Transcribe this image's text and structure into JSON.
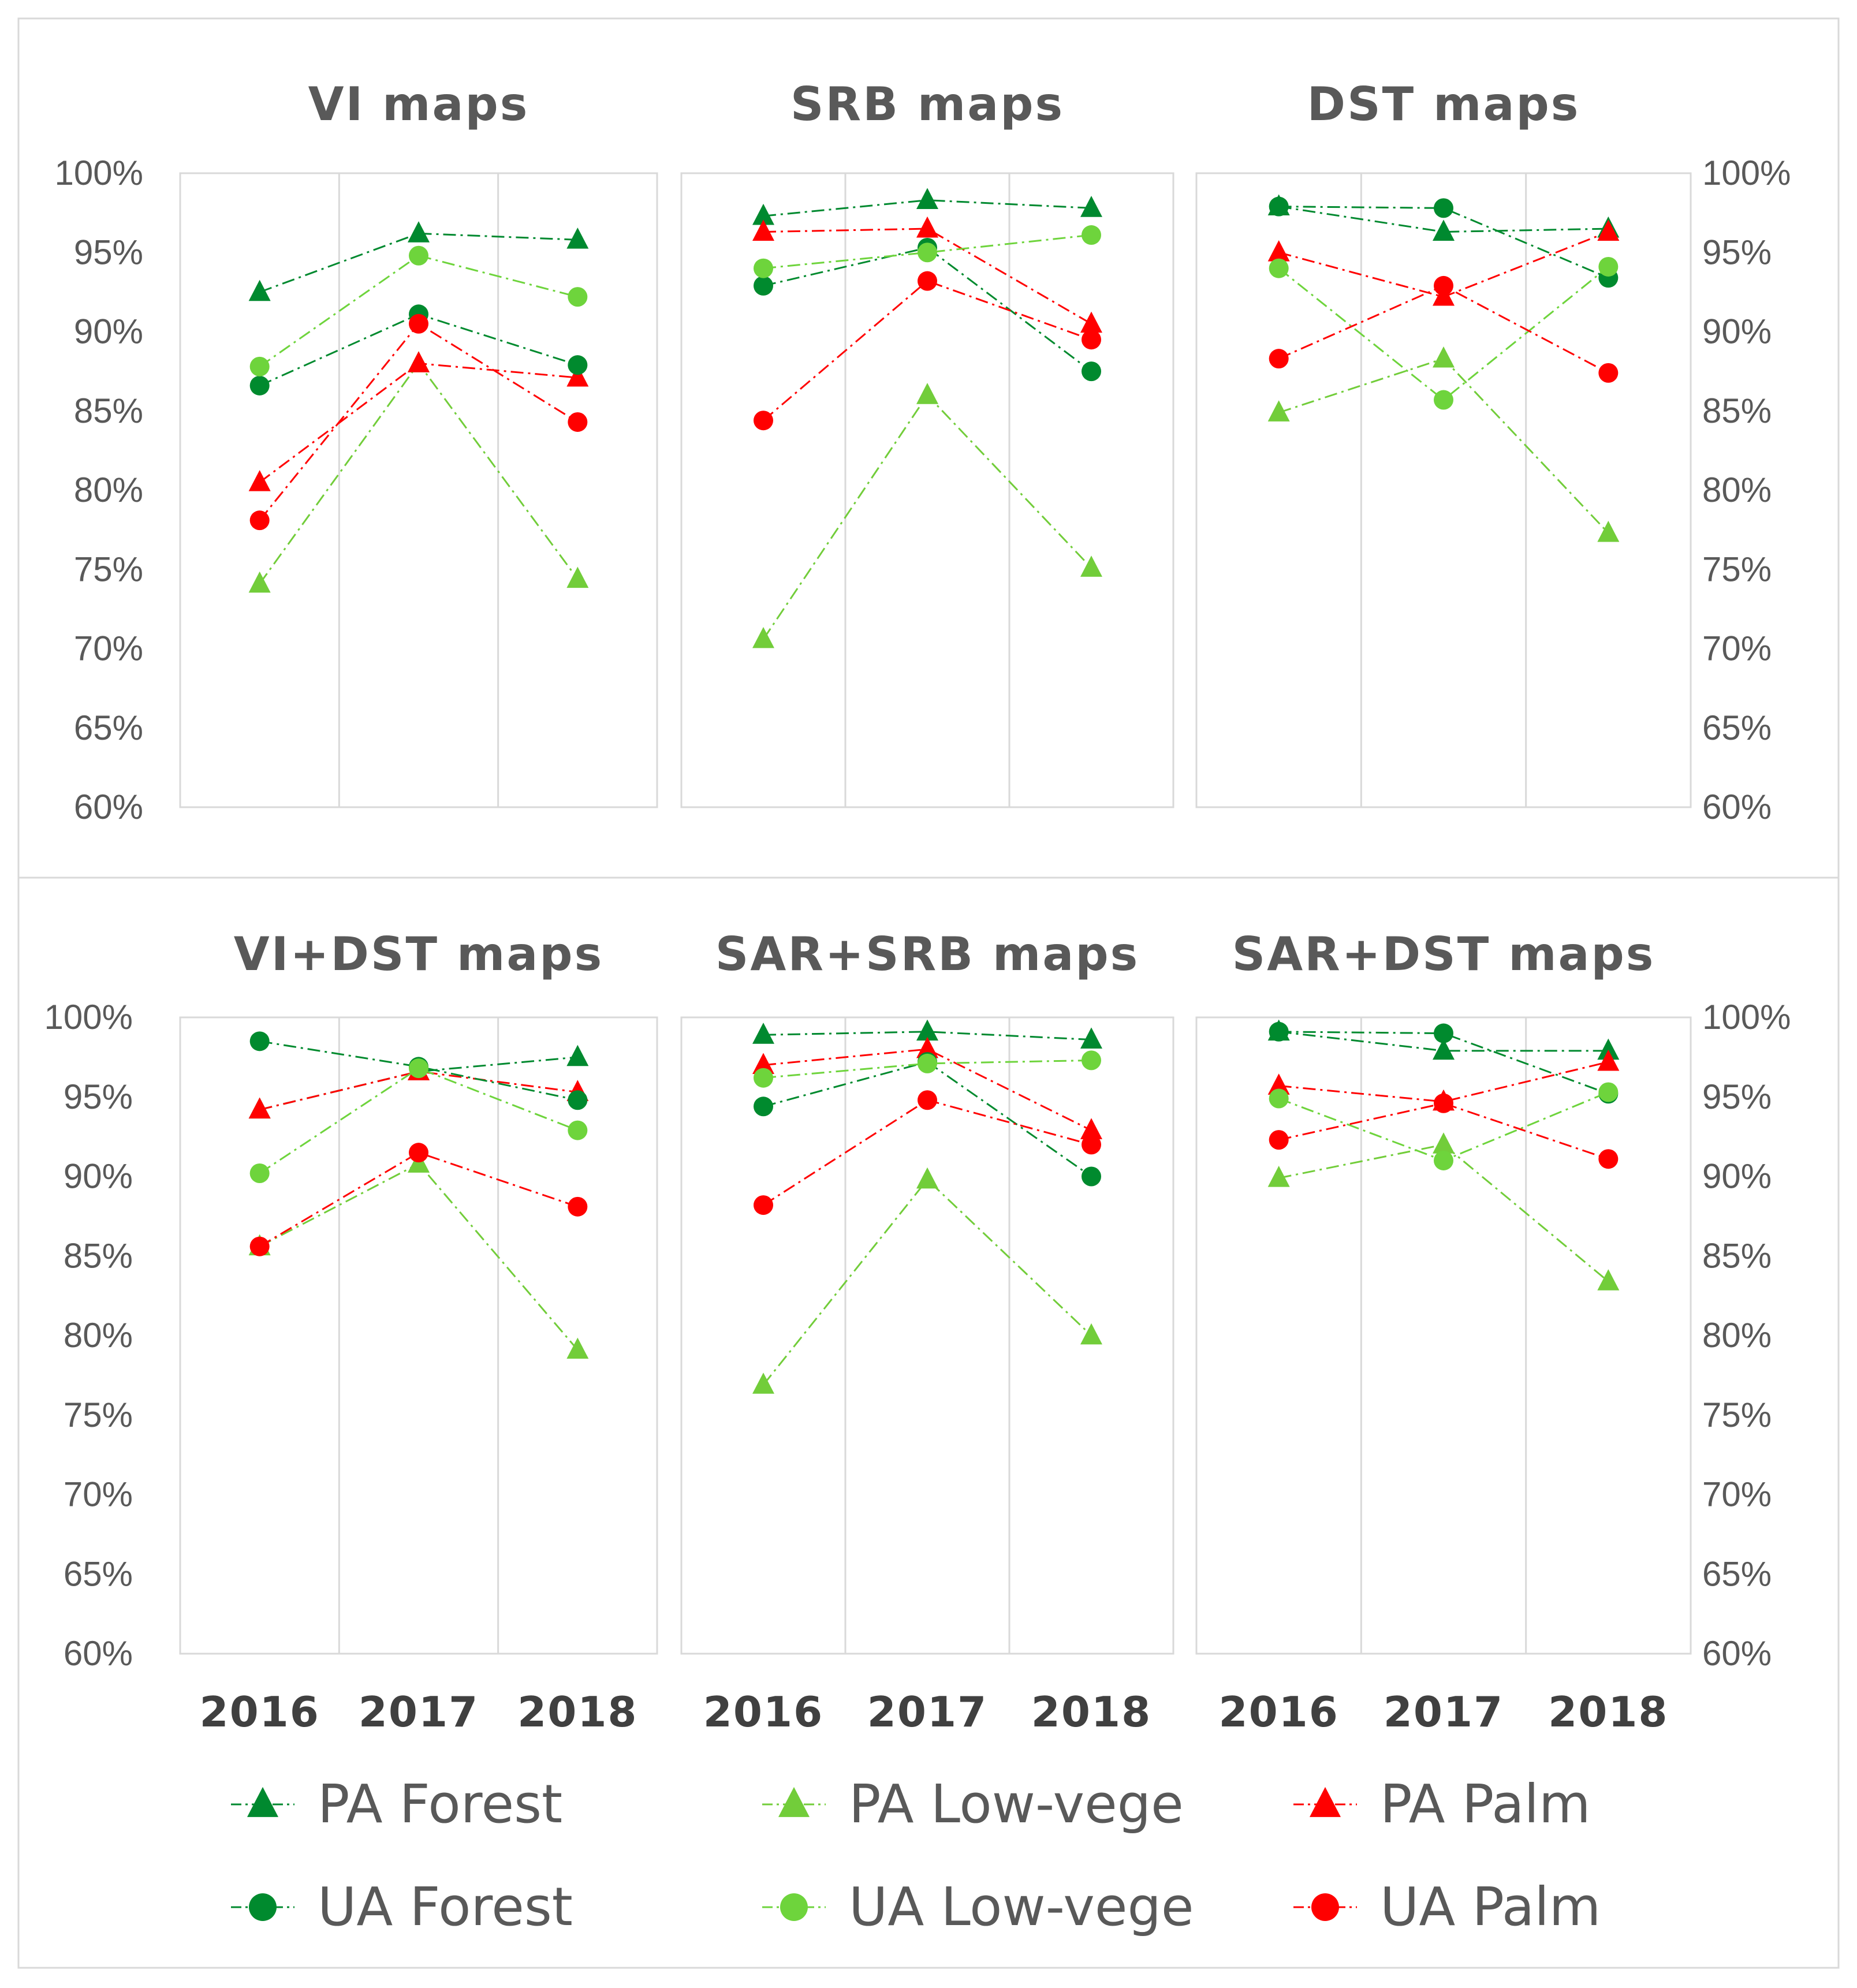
{
  "colors": {
    "pa_forest": "#00892f",
    "pa_lowvege": "#72cd3a",
    "pa_palm": "#ff0000",
    "ua_forest": "#008a2e",
    "ua_lowvege": "#6ed43c",
    "ua_palm": "#ff0000",
    "text": "#595959",
    "grid": "#d9d9d9"
  },
  "chart_data": [
    {
      "type": "line",
      "title": "VI maps",
      "categories": [
        "2016",
        "2017",
        "2018"
      ],
      "ylim": [
        0.6,
        1.0
      ],
      "series": [
        {
          "name": "PA Forest",
          "values": [
            0.925,
            0.962,
            0.958
          ]
        },
        {
          "name": "PA Low-vege",
          "values": [
            0.741,
            0.88,
            0.744
          ]
        },
        {
          "name": "PA Palm",
          "values": [
            0.805,
            0.88,
            0.871
          ]
        },
        {
          "name": "UA Forest",
          "values": [
            0.866,
            0.911,
            0.879
          ]
        },
        {
          "name": "UA Low-vege",
          "values": [
            0.878,
            0.948,
            0.922
          ]
        },
        {
          "name": "UA Palm",
          "values": [
            0.781,
            0.905,
            0.843
          ]
        }
      ]
    },
    {
      "type": "line",
      "title": "SRB maps",
      "categories": [
        "2016",
        "2017",
        "2018"
      ],
      "ylim": [
        0.6,
        1.0
      ],
      "series": [
        {
          "name": "PA Forest",
          "values": [
            0.973,
            0.983,
            0.978
          ]
        },
        {
          "name": "PA Low-vege",
          "values": [
            0.706,
            0.86,
            0.751
          ]
        },
        {
          "name": "PA Palm",
          "values": [
            0.963,
            0.965,
            0.905
          ]
        },
        {
          "name": "UA Forest",
          "values": [
            0.929,
            0.953,
            0.875
          ]
        },
        {
          "name": "UA Low-vege",
          "values": [
            0.94,
            0.95,
            0.961
          ]
        },
        {
          "name": "UA Palm",
          "values": [
            0.844,
            0.932,
            0.895
          ]
        }
      ]
    },
    {
      "type": "line",
      "title": "DST maps",
      "categories": [
        "2016",
        "2017",
        "2018"
      ],
      "ylim": [
        0.6,
        1.0
      ],
      "series": [
        {
          "name": "PA Forest",
          "values": [
            0.979,
            0.963,
            0.965
          ]
        },
        {
          "name": "PA Low-vege",
          "values": [
            0.849,
            0.883,
            0.773
          ]
        },
        {
          "name": "PA Palm",
          "values": [
            0.95,
            0.922,
            0.963
          ]
        },
        {
          "name": "UA Forest",
          "values": [
            0.979,
            0.978,
            0.934
          ]
        },
        {
          "name": "UA Low-vege",
          "values": [
            0.94,
            0.857,
            0.941
          ]
        },
        {
          "name": "UA Palm",
          "values": [
            0.883,
            0.929,
            0.874
          ]
        }
      ]
    },
    {
      "type": "line",
      "title": "VI+DST maps",
      "categories": [
        "2016",
        "2017",
        "2018"
      ],
      "ylim": [
        0.6,
        1.0
      ],
      "series": [
        {
          "name": "PA Forest",
          "values": [
            0.942,
            0.966,
            0.975
          ]
        },
        {
          "name": "PA Low-vege",
          "values": [
            0.856,
            0.908,
            0.791
          ]
        },
        {
          "name": "PA Palm",
          "values": [
            0.942,
            0.966,
            0.953
          ]
        },
        {
          "name": "UA Forest",
          "values": [
            0.985,
            0.969,
            0.948
          ]
        },
        {
          "name": "UA Low-vege",
          "values": [
            0.902,
            0.968,
            0.929
          ]
        },
        {
          "name": "UA Palm",
          "values": [
            0.856,
            0.915,
            0.881
          ]
        }
      ]
    },
    {
      "type": "line",
      "title": "SAR+SRB maps",
      "categories": [
        "2016",
        "2017",
        "2018"
      ],
      "ylim": [
        0.6,
        1.0
      ],
      "series": [
        {
          "name": "PA Forest",
          "values": [
            0.989,
            0.991,
            0.986
          ]
        },
        {
          "name": "PA Low-vege",
          "values": [
            0.769,
            0.898,
            0.8
          ]
        },
        {
          "name": "PA Palm",
          "values": [
            0.97,
            0.98,
            0.929
          ]
        },
        {
          "name": "UA Forest",
          "values": [
            0.944,
            0.972,
            0.9
          ]
        },
        {
          "name": "UA Low-vege",
          "values": [
            0.962,
            0.971,
            0.973
          ]
        },
        {
          "name": "UA Palm",
          "values": [
            0.882,
            0.948,
            0.92
          ]
        }
      ]
    },
    {
      "type": "line",
      "title": "SAR+DST maps",
      "categories": [
        "2016",
        "2017",
        "2018"
      ],
      "ylim": [
        0.6,
        1.0
      ],
      "series": [
        {
          "name": "PA Forest",
          "values": [
            0.991,
            0.979,
            0.979
          ]
        },
        {
          "name": "PA Low-vege",
          "values": [
            0.899,
            0.92,
            0.834
          ]
        },
        {
          "name": "PA Palm",
          "values": [
            0.957,
            0.947,
            0.972
          ]
        },
        {
          "name": "UA Forest",
          "values": [
            0.991,
            0.99,
            0.952
          ]
        },
        {
          "name": "UA Low-vege",
          "values": [
            0.949,
            0.91,
            0.953
          ]
        },
        {
          "name": "UA Palm",
          "values": [
            0.923,
            0.946,
            0.911
          ]
        }
      ]
    }
  ],
  "y_ticks": [
    "100%",
    "95%",
    "90%",
    "85%",
    "80%",
    "75%",
    "70%",
    "65%",
    "60%"
  ],
  "x_labels": [
    "2016",
    "2017",
    "2018"
  ],
  "legend": [
    {
      "label": "PA Forest",
      "marker": "triangle",
      "color_key": "pa_forest"
    },
    {
      "label": "PA Low-vege",
      "marker": "triangle",
      "color_key": "pa_lowvege"
    },
    {
      "label": "PA Palm",
      "marker": "triangle",
      "color_key": "pa_palm"
    },
    {
      "label": "UA Forest",
      "marker": "circle",
      "color_key": "ua_forest"
    },
    {
      "label": "UA Low-vege",
      "marker": "circle",
      "color_key": "ua_lowvege"
    },
    {
      "label": "UA Palm",
      "marker": "circle",
      "color_key": "ua_palm"
    }
  ]
}
